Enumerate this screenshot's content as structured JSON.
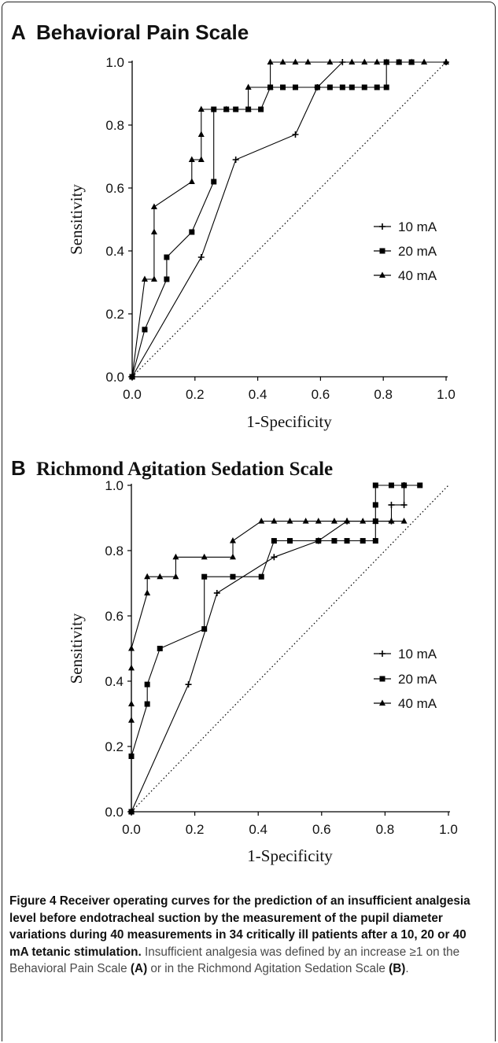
{
  "chart_data": [
    {
      "type": "line",
      "panel": "A",
      "title": "Behavioral Pain Scale",
      "xlabel": "1-Specificity",
      "ylabel": "Sensitivity",
      "xlim": [
        0,
        1
      ],
      "ylim": [
        0,
        1
      ],
      "xticks": [
        "0.0",
        "0.2",
        "0.4",
        "0.6",
        "0.8",
        "1.0"
      ],
      "yticks": [
        "0.0",
        "0.2",
        "0.4",
        "0.6",
        "0.8",
        "1.0"
      ],
      "legend_position": "bottom-right",
      "reference_line": "diagonal dotted",
      "series": [
        {
          "name": "10 mA",
          "marker": "plus",
          "x": [
            0,
            0.22,
            0.33,
            0.52,
            0.59,
            0.67,
            1.0
          ],
          "y": [
            0,
            0.38,
            0.69,
            0.77,
            0.92,
            1.0,
            1.0
          ]
        },
        {
          "name": "20 mA",
          "marker": "square",
          "x": [
            0,
            0.04,
            0.11,
            0.11,
            0.19,
            0.26,
            0.26,
            0.3,
            0.33,
            0.37,
            0.41,
            0.44,
            0.44,
            0.48,
            0.52,
            0.59,
            0.63,
            0.67,
            0.7,
            0.74,
            0.78,
            0.81,
            0.81,
            0.85,
            0.89
          ],
          "y": [
            0,
            0.15,
            0.31,
            0.38,
            0.46,
            0.62,
            0.85,
            0.85,
            0.85,
            0.85,
            0.85,
            0.92,
            0.92,
            0.92,
            0.92,
            0.92,
            0.92,
            0.92,
            0.92,
            0.92,
            0.92,
            0.92,
            1.0,
            1.0,
            1.0
          ]
        },
        {
          "name": "40 mA",
          "marker": "triangle",
          "x": [
            0,
            0.04,
            0.07,
            0.07,
            0.07,
            0.19,
            0.19,
            0.22,
            0.22,
            0.22,
            0.3,
            0.37,
            0.37,
            0.44,
            0.44,
            0.48,
            0.52,
            0.56,
            0.63,
            0.7,
            0.74,
            0.78,
            0.81,
            0.85,
            0.89,
            0.93,
            1.0
          ],
          "y": [
            0,
            0.31,
            0.31,
            0.46,
            0.54,
            0.62,
            0.69,
            0.69,
            0.77,
            0.85,
            0.85,
            0.85,
            0.92,
            0.92,
            1.0,
            1.0,
            1.0,
            1.0,
            1.0,
            1.0,
            1.0,
            1.0,
            1.0,
            1.0,
            1.0,
            1.0,
            1.0
          ]
        }
      ]
    },
    {
      "type": "line",
      "panel": "B",
      "title": "Richmond Agitation Sedation Scale",
      "xlabel": "1-Specificity",
      "ylabel": "Sensitivity",
      "xlim": [
        0,
        1
      ],
      "ylim": [
        0,
        1
      ],
      "xticks": [
        "0.0",
        "0.2",
        "0.4",
        "0.6",
        "0.8",
        "1.0"
      ],
      "yticks": [
        "0.0",
        "0.2",
        "0.4",
        "0.6",
        "0.8",
        "1.0"
      ],
      "legend_position": "bottom-right",
      "reference_line": "diagonal dotted",
      "series": [
        {
          "name": "10 mA",
          "marker": "plus",
          "x": [
            0,
            0.18,
            0.27,
            0.45,
            0.59,
            0.68,
            0.82,
            0.82,
            0.86,
            0.86
          ],
          "y": [
            0,
            0.39,
            0.67,
            0.78,
            0.83,
            0.89,
            0.89,
            0.94,
            0.94,
            1.0
          ]
        },
        {
          "name": "20 mA",
          "marker": "square",
          "x": [
            0,
            0,
            0.05,
            0.05,
            0.09,
            0.23,
            0.23,
            0.32,
            0.41,
            0.45,
            0.5,
            0.59,
            0.64,
            0.68,
            0.73,
            0.77,
            0.77,
            0.77,
            0.77,
            0.82,
            0.86,
            0.91
          ],
          "y": [
            0,
            0.17,
            0.33,
            0.39,
            0.5,
            0.56,
            0.72,
            0.72,
            0.72,
            0.83,
            0.83,
            0.83,
            0.83,
            0.83,
            0.83,
            0.83,
            0.89,
            0.94,
            1.0,
            1.0,
            1.0,
            1.0
          ]
        },
        {
          "name": "40 mA",
          "marker": "triangle",
          "x": [
            0,
            0,
            0,
            0,
            0,
            0.05,
            0.05,
            0.09,
            0.14,
            0.14,
            0.23,
            0.32,
            0.32,
            0.41,
            0.45,
            0.5,
            0.55,
            0.59,
            0.64,
            0.68,
            0.73,
            0.77,
            0.82,
            0.86
          ],
          "y": [
            0,
            0.28,
            0.33,
            0.44,
            0.5,
            0.67,
            0.72,
            0.72,
            0.72,
            0.78,
            0.78,
            0.78,
            0.83,
            0.89,
            0.89,
            0.89,
            0.89,
            0.89,
            0.89,
            0.89,
            0.89,
            0.89,
            0.89,
            0.89
          ]
        }
      ]
    }
  ],
  "panels": {
    "a": {
      "letter": "A",
      "title": "Behavioral Pain Scale"
    },
    "b": {
      "letter": "B",
      "title": "Richmond Agitation Sedation Scale"
    }
  },
  "caption": {
    "lead": "Figure 4 Receiver operating curves for the prediction of an insufficient analgesia level before endotracheal suction by the measurement of the pupil diameter variations during 40 measurements in 34 critically ill patients after a 10, 20 or 40 mA tetanic stimulation.",
    "body_1": " Insufficient analgesia was defined by an increase ≥1 on the Behavioral Pain Scale ",
    "ref_a": "(A)",
    "body_2": " or in the Richmond Agitation Sedation Scale ",
    "ref_b": "(B)",
    "body_3": "."
  }
}
